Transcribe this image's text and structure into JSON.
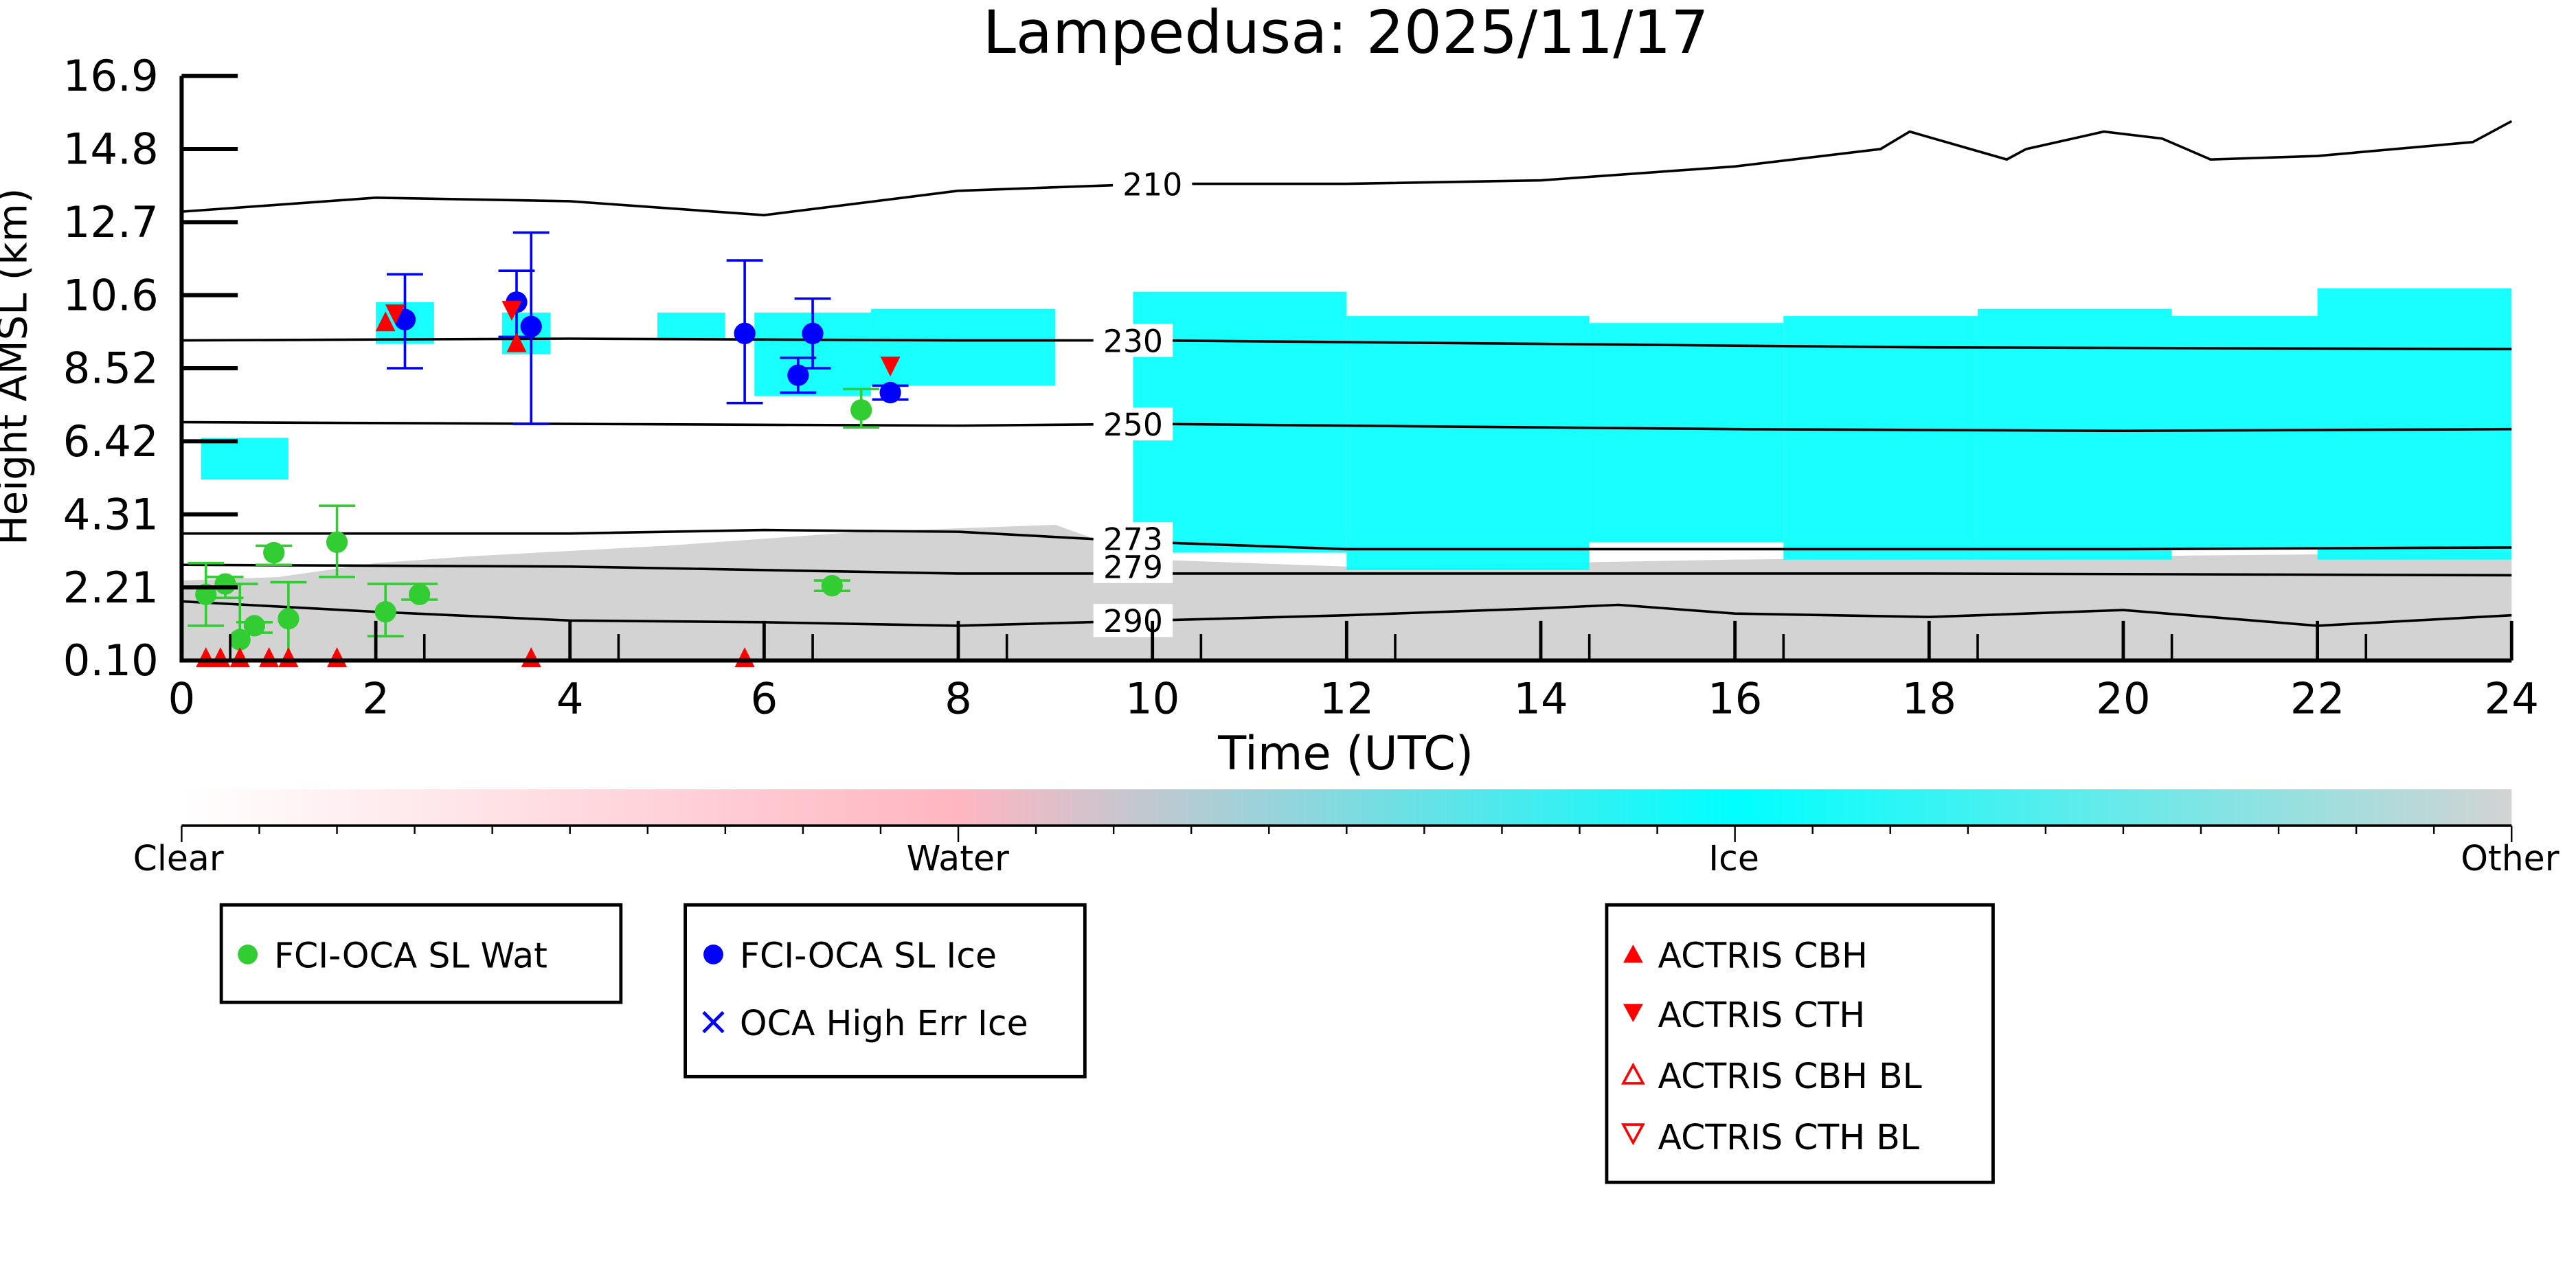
{
  "chart_data": {
    "type": "scatter",
    "title": "Lampedusa: 2025/11/17",
    "xlabel": "Time (UTC)",
    "ylabel": "Height AMSL (km)",
    "xlim": [
      0,
      24
    ],
    "ylim": [
      0.1,
      16.9
    ],
    "xticks": [
      "0",
      "2",
      "4",
      "6",
      "8",
      "10",
      "12",
      "14",
      "16",
      "18",
      "20",
      "22",
      "24"
    ],
    "yticks": [
      "0.10",
      "2.21",
      "4.31",
      "6.42",
      "8.52",
      "10.6",
      "12.7",
      "14.8",
      "16.9"
    ],
    "series": [
      {
        "name": "FCI-OCA SL Wat",
        "color": "#32cd32",
        "marker": "circle",
        "points": [
          [
            0.25,
            2.0,
            1.1,
            2.9
          ],
          [
            0.45,
            2.3,
            1.9,
            2.5
          ],
          [
            0.6,
            0.7,
            0.1,
            2.3
          ],
          [
            0.75,
            1.1,
            0.9,
            1.2
          ],
          [
            0.95,
            3.2,
            2.85,
            3.4
          ],
          [
            1.1,
            1.3,
            0.1,
            2.35
          ],
          [
            1.6,
            3.5,
            2.5,
            4.55
          ],
          [
            2.1,
            1.5,
            0.8,
            2.3
          ],
          [
            2.45,
            2.0,
            1.85,
            2.3
          ],
          [
            6.7,
            2.25,
            2.1,
            2.4
          ],
          [
            7.0,
            7.3,
            6.8,
            7.9
          ]
        ]
      },
      {
        "name": "FCI-OCA SL Ice",
        "color": "#0000ff",
        "marker": "circle",
        "points": [
          [
            2.3,
            9.9,
            8.5,
            11.2
          ],
          [
            3.45,
            10.4,
            9.4,
            11.3
          ],
          [
            3.6,
            9.7,
            6.9,
            12.4
          ],
          [
            5.8,
            9.5,
            7.5,
            11.6
          ],
          [
            6.35,
            8.3,
            7.8,
            8.8
          ],
          [
            6.5,
            9.5,
            8.5,
            10.5
          ],
          [
            7.3,
            7.8,
            7.6,
            8.0
          ]
        ]
      },
      {
        "name": "OCA High Err Ice",
        "color": "#0000ff",
        "marker": "x",
        "points": []
      },
      {
        "name": "ACTRIS CBH",
        "color": "#ff0000",
        "marker": "triangle-up",
        "points": [
          [
            2.1,
            9.8
          ],
          [
            3.45,
            9.2
          ],
          [
            0.25,
            0.15
          ],
          [
            0.4,
            0.15
          ],
          [
            0.6,
            0.15
          ],
          [
            0.9,
            0.15
          ],
          [
            1.1,
            0.15
          ],
          [
            1.6,
            0.15
          ],
          [
            3.6,
            0.15
          ],
          [
            5.8,
            0.15
          ]
        ]
      },
      {
        "name": "ACTRIS CTH",
        "color": "#ff0000",
        "marker": "triangle-down",
        "points": [
          [
            2.2,
            10.0
          ],
          [
            3.4,
            10.1
          ],
          [
            7.3,
            8.5
          ]
        ]
      },
      {
        "name": "ACTRIS CBH BL",
        "color": "#ff0000",
        "marker": "triangle-up-open",
        "points": []
      },
      {
        "name": "ACTRIS CTH BL",
        "color": "#ff0000",
        "marker": "triangle-down-open",
        "points": []
      }
    ],
    "contours": [
      {
        "label": "210",
        "label_at": [
          10.0,
          13.8
        ],
        "points": [
          [
            0,
            13.0
          ],
          [
            2,
            13.4
          ],
          [
            4,
            13.3
          ],
          [
            6,
            12.9
          ],
          [
            8,
            13.6
          ],
          [
            10,
            13.8
          ],
          [
            12,
            13.8
          ],
          [
            14,
            13.9
          ],
          [
            16,
            14.3
          ],
          [
            17.5,
            14.8
          ],
          [
            17.8,
            15.3
          ],
          [
            18.8,
            14.5
          ],
          [
            19,
            14.8
          ],
          [
            19.8,
            15.3
          ],
          [
            20.4,
            15.1
          ],
          [
            20.9,
            14.5
          ],
          [
            22,
            14.6
          ],
          [
            23.6,
            15.0
          ],
          [
            24,
            15.6
          ]
        ]
      },
      {
        "label": "230",
        "label_at": [
          9.8,
          9.3
        ],
        "points": [
          [
            0,
            9.3
          ],
          [
            4,
            9.35
          ],
          [
            8,
            9.3
          ],
          [
            10,
            9.3
          ],
          [
            14,
            9.2
          ],
          [
            18,
            9.1
          ],
          [
            24,
            9.05
          ]
        ]
      },
      {
        "label": "250",
        "label_at": [
          9.8,
          6.9
        ],
        "points": [
          [
            0,
            6.95
          ],
          [
            4,
            6.9
          ],
          [
            8,
            6.85
          ],
          [
            10,
            6.9
          ],
          [
            12,
            6.85
          ],
          [
            16,
            6.75
          ],
          [
            20,
            6.7
          ],
          [
            24,
            6.75
          ]
        ]
      },
      {
        "label": "273",
        "label_at": [
          9.8,
          3.6
        ],
        "points": [
          [
            0,
            3.75
          ],
          [
            4,
            3.75
          ],
          [
            6,
            3.85
          ],
          [
            8,
            3.8
          ],
          [
            10,
            3.5
          ],
          [
            12,
            3.3
          ],
          [
            16,
            3.3
          ],
          [
            20,
            3.3
          ],
          [
            24,
            3.35
          ]
        ]
      },
      {
        "label": "279",
        "label_at": [
          9.8,
          2.8
        ],
        "points": [
          [
            0,
            2.85
          ],
          [
            4,
            2.8
          ],
          [
            8,
            2.6
          ],
          [
            10,
            2.6
          ],
          [
            14,
            2.6
          ],
          [
            18,
            2.6
          ],
          [
            24,
            2.55
          ]
        ]
      },
      {
        "label": "290",
        "label_at": [
          9.8,
          1.25
        ],
        "points": [
          [
            0,
            1.8
          ],
          [
            2,
            1.5
          ],
          [
            4,
            1.25
          ],
          [
            6,
            1.2
          ],
          [
            8,
            1.1
          ],
          [
            10,
            1.25
          ],
          [
            12,
            1.4
          ],
          [
            14,
            1.6
          ],
          [
            14.8,
            1.7
          ],
          [
            16,
            1.45
          ],
          [
            18,
            1.35
          ],
          [
            20,
            1.55
          ],
          [
            22,
            1.1
          ],
          [
            24,
            1.4
          ]
        ]
      }
    ],
    "cloud_mask": {
      "ice_regions": [
        [
          0.2,
          1.1,
          5.3,
          6.5
        ],
        [
          2.0,
          2.6,
          9.2,
          10.4
        ],
        [
          3.3,
          3.8,
          8.9,
          10.1
        ],
        [
          4.9,
          5.6,
          9.3,
          10.1
        ],
        [
          5.9,
          7.1,
          7.7,
          10.1
        ],
        [
          7.1,
          9.0,
          8.0,
          10.2
        ],
        [
          9.8,
          12.0,
          3.2,
          10.7
        ],
        [
          12.0,
          14.5,
          2.7,
          10.0
        ],
        [
          14.5,
          16.5,
          3.5,
          9.8
        ],
        [
          16.5,
          18.5,
          3.0,
          10.0
        ],
        [
          18.5,
          20.5,
          3.0,
          10.2
        ],
        [
          20.5,
          22.0,
          3.3,
          10.0
        ],
        [
          22.0,
          24.0,
          3.0,
          10.8
        ]
      ],
      "other_top_km": [
        [
          0,
          2.4
        ],
        [
          1,
          2.5
        ],
        [
          2,
          2.9
        ],
        [
          3,
          3.1
        ],
        [
          5,
          3.4
        ],
        [
          7,
          3.8
        ],
        [
          9,
          4.0
        ],
        [
          10,
          3.0
        ],
        [
          12,
          2.8
        ],
        [
          16,
          3.0
        ],
        [
          20,
          3.1
        ],
        [
          24,
          3.2
        ]
      ]
    },
    "colorbar": {
      "labels": [
        "Clear",
        "Water",
        "Ice",
        "Other"
      ],
      "colors": [
        "#ffffff",
        "#ffb6c1",
        "#00ffff",
        "#d3d3d3"
      ]
    }
  }
}
